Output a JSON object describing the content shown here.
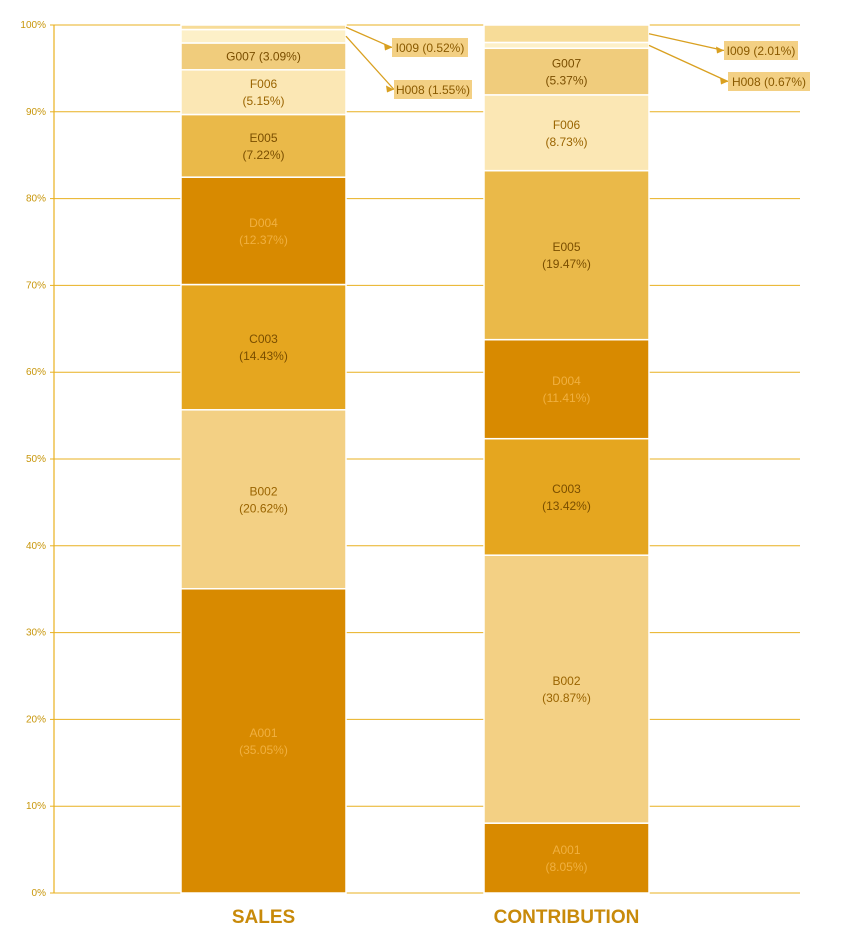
{
  "chart_data": {
    "type": "bar",
    "stacked": true,
    "normalized": true,
    "categories": [
      "SALES",
      "CONTRIBUTION"
    ],
    "ylim": [
      0,
      100
    ],
    "yticks": [
      "0%",
      "10%",
      "20%",
      "30%",
      "40%",
      "50%",
      "60%",
      "70%",
      "80%",
      "90%",
      "100%"
    ],
    "grid": true,
    "series": [
      {
        "name": "A001",
        "values": [
          35.05,
          8.05
        ],
        "labels": [
          "(35.05%)",
          "(8.05%)"
        ],
        "color": "#d88a00",
        "text_color": "#f0b040"
      },
      {
        "name": "B002",
        "values": [
          20.62,
          30.87
        ],
        "labels": [
          "(20.62%)",
          "(30.87%)"
        ],
        "color": "#f3d084",
        "text_color": "#9a6400"
      },
      {
        "name": "C003",
        "values": [
          14.43,
          13.42
        ],
        "labels": [
          "(14.43%)",
          "(13.42%)"
        ],
        "color": "#e5a61f",
        "text_color": "#7a4e00"
      },
      {
        "name": "D004",
        "values": [
          12.37,
          11.41
        ],
        "labels": [
          "(12.37%)",
          "(11.41%)"
        ],
        "color": "#d88a00",
        "text_color": "#f0b040"
      },
      {
        "name": "E005",
        "values": [
          7.22,
          19.47
        ],
        "labels": [
          "(7.22%)",
          "(19.47%)"
        ],
        "color": "#eab949",
        "text_color": "#7a4e00"
      },
      {
        "name": "F006",
        "values": [
          5.15,
          8.73
        ],
        "labels": [
          "(5.15%)",
          "(8.73%)"
        ],
        "color": "#fbe7b4",
        "text_color": "#9a6400"
      },
      {
        "name": "G007",
        "values": [
          3.09,
          5.37
        ],
        "labels": [
          "(3.09%)",
          "(5.37%)"
        ],
        "color": "#f0cc7c",
        "text_color": "#7a4e00"
      },
      {
        "name": "H008",
        "values": [
          1.55,
          0.67
        ],
        "labels": [
          "(1.55%)",
          "(0.67%)"
        ],
        "color": "#fdf0c8",
        "text_color": "#7a4e00"
      },
      {
        "name": "I009",
        "values": [
          0.52,
          2.01
        ],
        "labels": [
          "(0.52%)",
          "(2.01%)"
        ],
        "color": "#f7dc98",
        "text_color": "#7a4e00"
      }
    ],
    "callouts": [
      {
        "text": "I009 (0.52%)"
      },
      {
        "text": "H008 (1.55%)"
      },
      {
        "text": "I009 (2.01%)"
      },
      {
        "text": "H008 (0.67%)"
      }
    ],
    "inline_labels": [
      {
        "text": "G007 (3.09%)"
      }
    ],
    "colors": {
      "grid": "#e8b020",
      "axis": "#e8b020",
      "tick": "#c8960a",
      "category": "#c88a0a",
      "callout_bg": "#f3d084"
    }
  }
}
